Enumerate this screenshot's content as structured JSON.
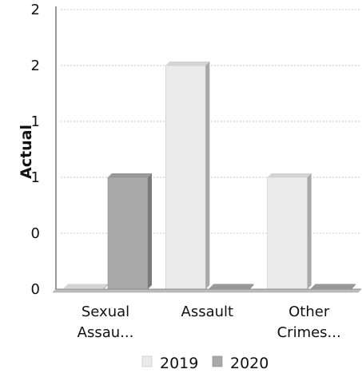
{
  "chart_data": {
    "type": "bar",
    "ylabel": "Actual",
    "xlabel": "",
    "categories": [
      "Sexual Assau...",
      "Assault",
      "Other Crimes..."
    ],
    "category_lines": [
      [
        "Sexual",
        "Assau..."
      ],
      [
        "Assault"
      ],
      [
        "Other",
        "Crimes..."
      ]
    ],
    "series": [
      {
        "name": "2019",
        "values": [
          0,
          2,
          1
        ],
        "color": "#ebebeb"
      },
      {
        "name": "2020",
        "values": [
          1,
          0,
          0
        ],
        "color": "#a9a9a9"
      }
    ],
    "ylim": [
      0,
      2.5
    ],
    "yticks": [
      0,
      0.5,
      1,
      1.5,
      2,
      2.5
    ],
    "ytick_labels": [
      "0",
      "0",
      "1",
      "1",
      "2",
      "2"
    ],
    "grid": true,
    "legend": "bottom",
    "style": "3d-bar"
  }
}
